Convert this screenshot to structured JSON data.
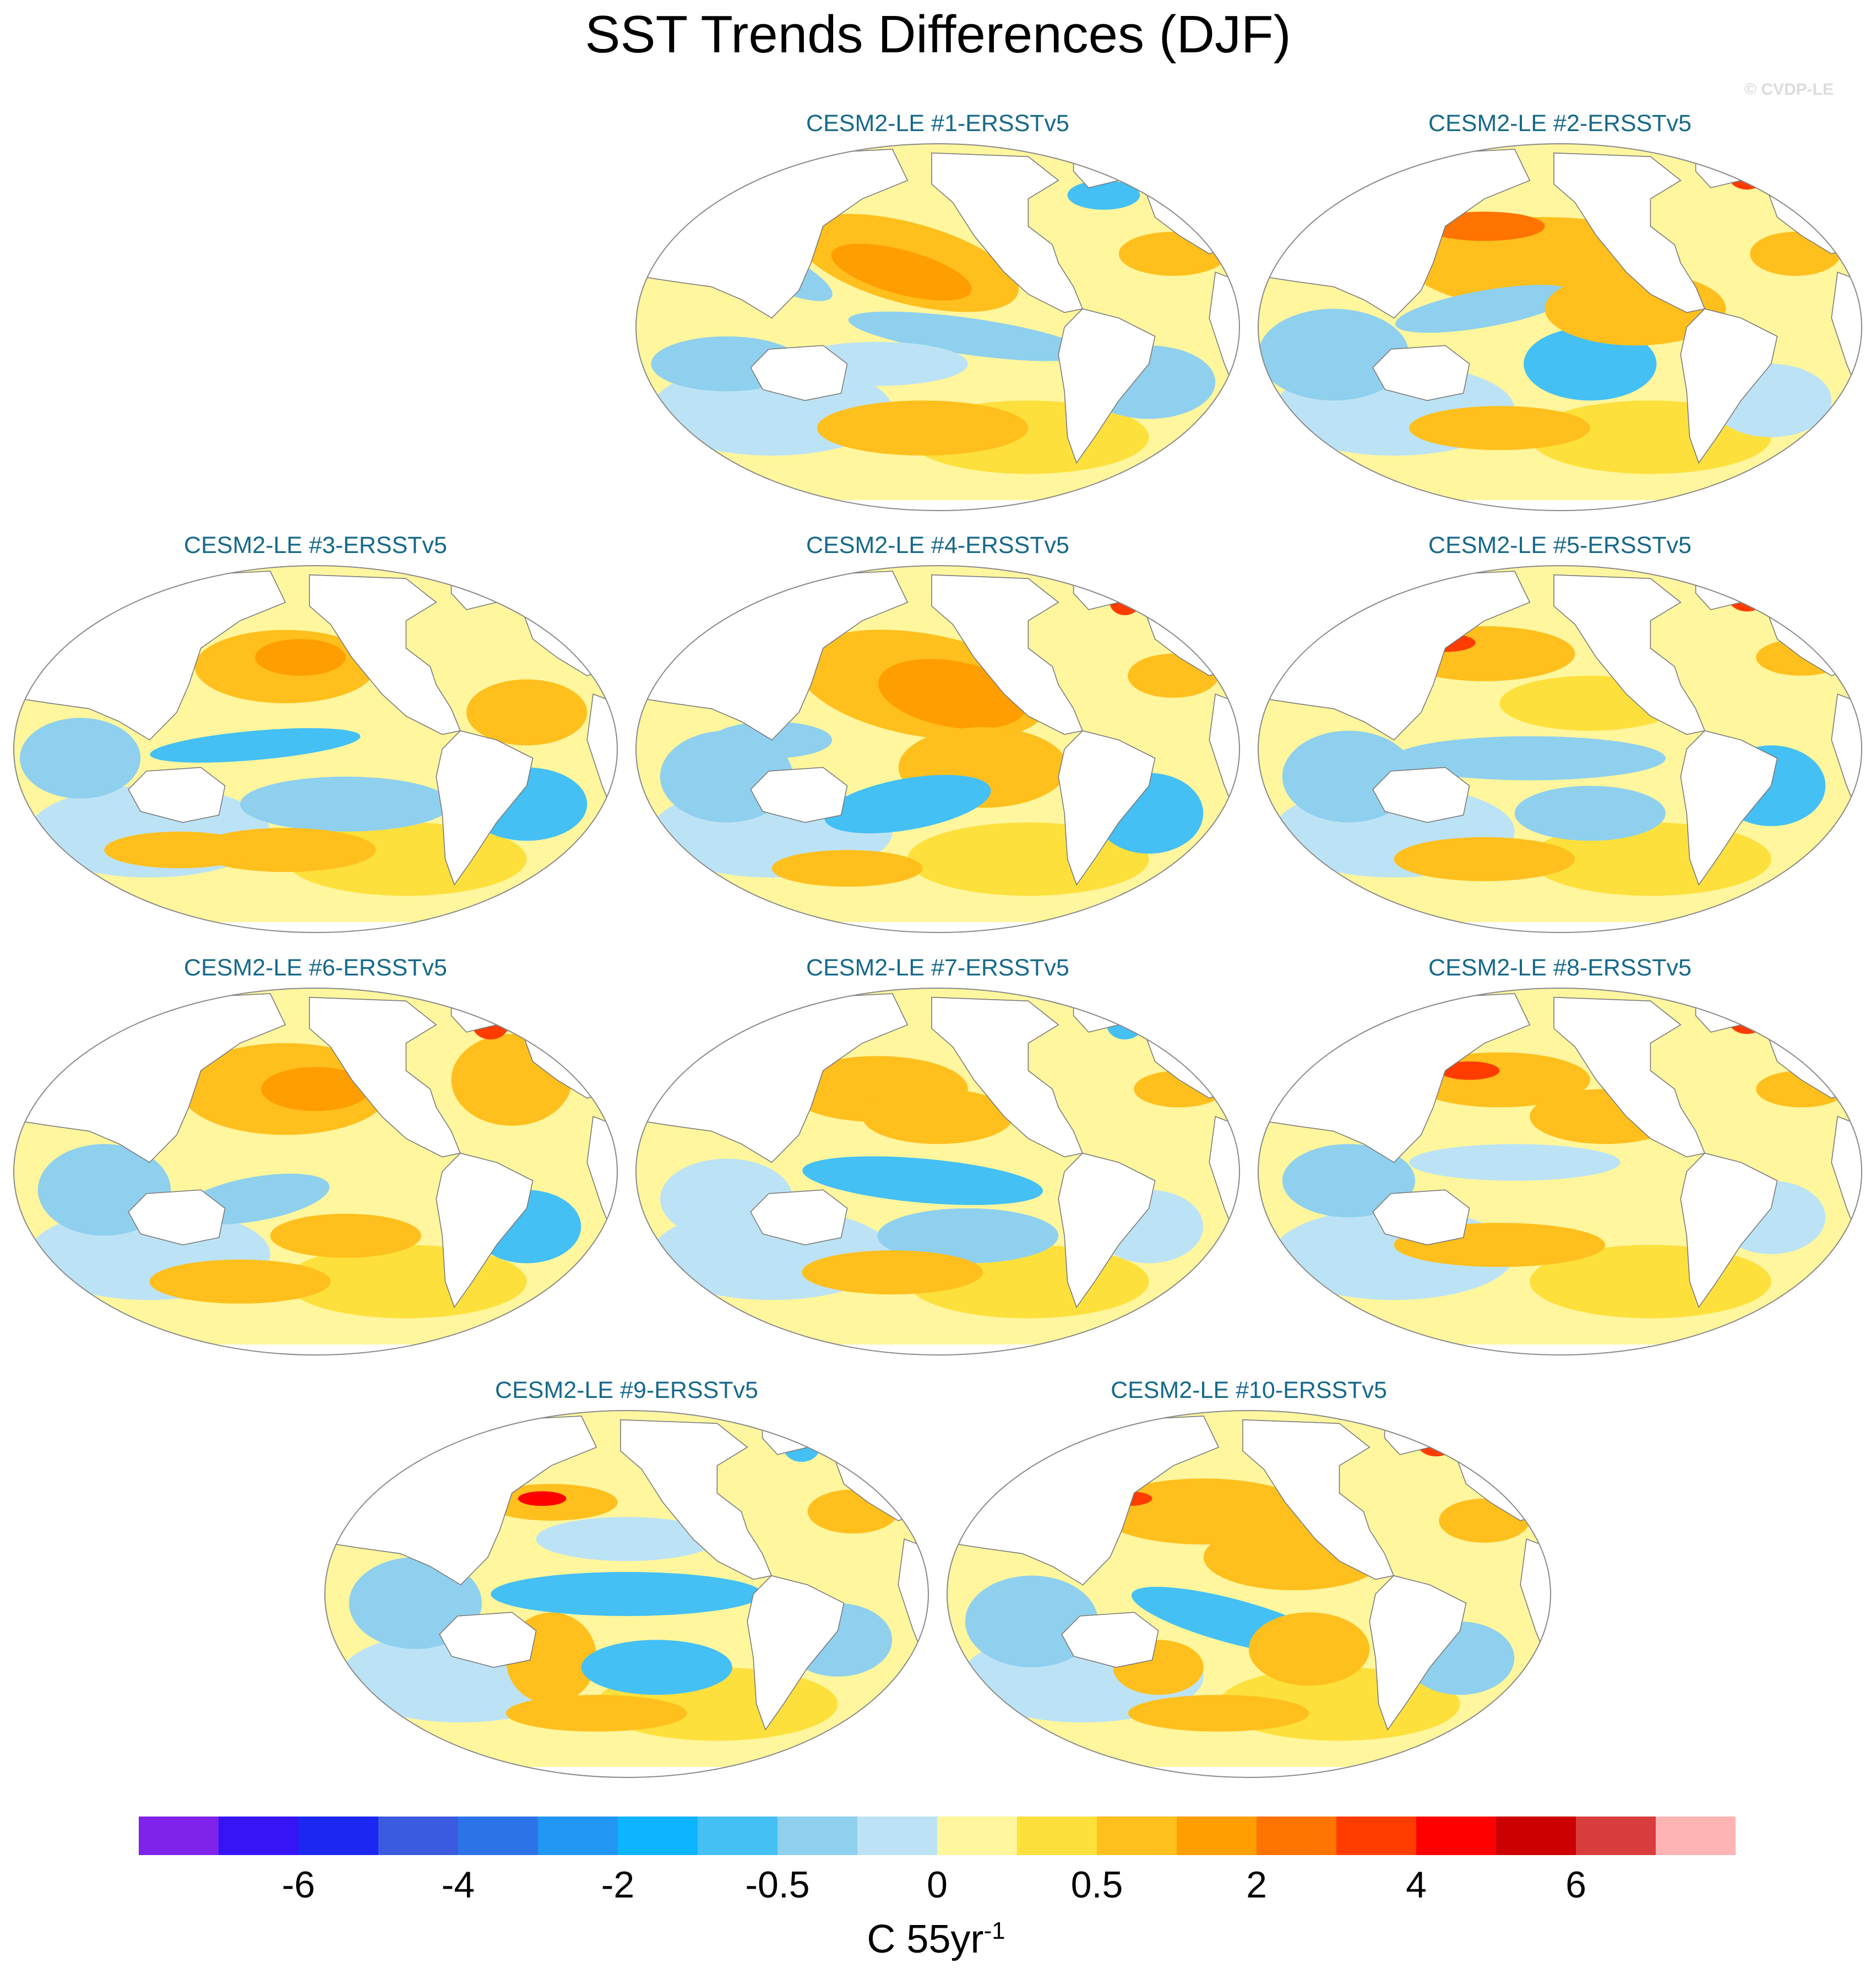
{
  "title": "SST Trends Differences (DJF)",
  "credit": "© CVDP-LE",
  "panels": [
    {
      "title": "CESM2-LE #1-ERSSTv5",
      "pattern": 1
    },
    {
      "title": "CESM2-LE #2-ERSSTv5",
      "pattern": 2
    },
    {
      "title": "CESM2-LE #3-ERSSTv5",
      "pattern": 3
    },
    {
      "title": "CESM2-LE #4-ERSSTv5",
      "pattern": 4
    },
    {
      "title": "CESM2-LE #5-ERSSTv5",
      "pattern": 5
    },
    {
      "title": "CESM2-LE #6-ERSSTv5",
      "pattern": 6
    },
    {
      "title": "CESM2-LE #7-ERSSTv5",
      "pattern": 7
    },
    {
      "title": "CESM2-LE #8-ERSSTv5",
      "pattern": 8
    },
    {
      "title": "CESM2-LE #9-ERSSTv5",
      "pattern": 9
    },
    {
      "title": "CESM2-LE #10-ERSSTv5",
      "pattern": 10
    }
  ],
  "colorbar": {
    "colors": [
      "#7f22ea",
      "#3514f5",
      "#1d27f2",
      "#3a5be0",
      "#2d73e8",
      "#2196f3",
      "#0db4ff",
      "#44c0f4",
      "#8fd0ee",
      "#bce3f5",
      "#fff69d",
      "#fee03c",
      "#ffbf1d",
      "#ff9e00",
      "#ff7300",
      "#ff3c00",
      "#ff0000",
      "#cc0000",
      "#d93d3d",
      "#ffb4b4"
    ],
    "tick_labels": [
      "-6",
      "-4",
      "-2",
      "-0.5",
      "0",
      "0.5",
      "2",
      "4",
      "6"
    ],
    "units": "C 55yr",
    "units_exponent": "-1"
  },
  "land_color": "#ffffff",
  "sea_ice_color": "#fff6a0"
}
